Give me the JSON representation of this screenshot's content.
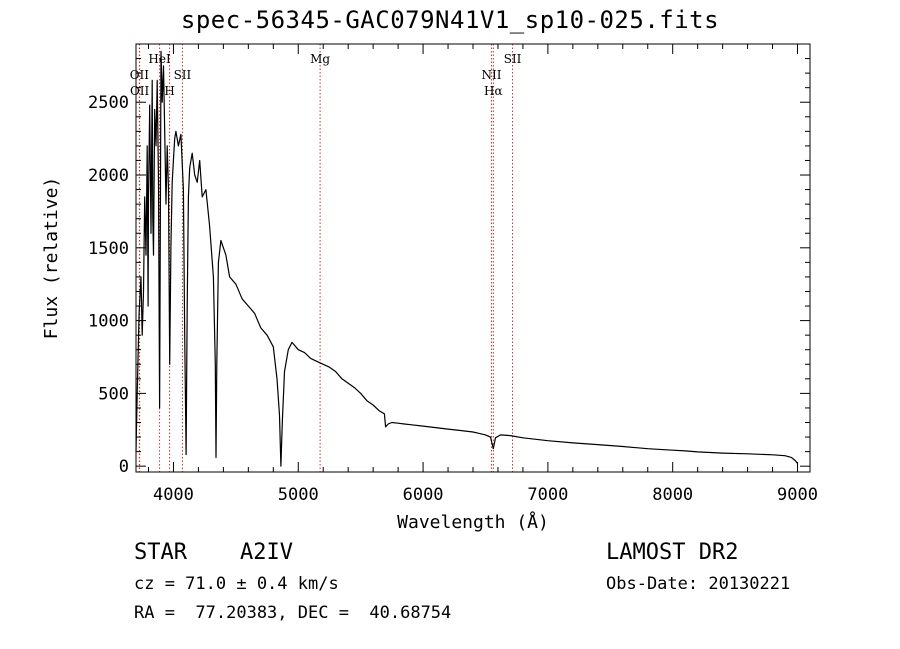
{
  "chart_data": {
    "type": "line",
    "title": "spec-56345-GAC079N41V1_sp10-025.fits",
    "xlabel": "Wavelength (Å)",
    "ylabel": "Flux (relative)",
    "xlim": [
      3700,
      9100
    ],
    "ylim": [
      -40,
      2900
    ],
    "x_ticks": [
      "4000",
      "5000",
      "6000",
      "7000",
      "8000",
      "9000"
    ],
    "x_tick_values": [
      4000,
      5000,
      6000,
      7000,
      8000,
      9000
    ],
    "y_ticks": [
      "0",
      "500",
      "1000",
      "1500",
      "2000",
      "2500"
    ],
    "y_tick_values": [
      0,
      500,
      1000,
      1500,
      2000,
      2500
    ],
    "line_color": "#000000",
    "marker_color": "#c0392b",
    "series": [
      {
        "x": [
          3700,
          3710,
          3725,
          3740,
          3750,
          3760,
          3770,
          3780,
          3790,
          3797,
          3800,
          3810,
          3820,
          3830,
          3835,
          3840,
          3850,
          3860,
          3870,
          3880,
          3889,
          3895,
          3900,
          3910,
          3920,
          3930,
          3940,
          3950,
          3960,
          3970,
          3980,
          3990,
          4000,
          4010,
          4020,
          4040,
          4060,
          4080,
          4090,
          4101,
          4110,
          4120,
          4130,
          4150,
          4170,
          4190,
          4210,
          4230,
          4260,
          4290,
          4320,
          4335,
          4341,
          4347,
          4360,
          4380,
          4400,
          4420,
          4450,
          4500,
          4550,
          4600,
          4650,
          4700,
          4750,
          4800,
          4830,
          4850,
          4861,
          4872,
          4890,
          4920,
          4950,
          5000,
          5050,
          5100,
          5150,
          5200,
          5250,
          5300,
          5350,
          5400,
          5450,
          5500,
          5550,
          5600,
          5650,
          5690,
          5700,
          5720,
          5750,
          5800,
          5850,
          5900,
          6000,
          6100,
          6200,
          6300,
          6400,
          6450,
          6500,
          6540,
          6563,
          6580,
          6620,
          6700,
          6800,
          7000,
          7200,
          7400,
          7600,
          7800,
          8000,
          8100,
          8200,
          8400,
          8600,
          8800,
          8900,
          8950,
          8980,
          9000
        ],
        "values": [
          100,
          500,
          1050,
          1300,
          900,
          1200,
          1850,
          1450,
          2200,
          1100,
          1850,
          2480,
          1600,
          2650,
          1700,
          1450,
          2450,
          2200,
          2650,
          1950,
          400,
          1600,
          2850,
          2500,
          2750,
          2300,
          1800,
          2200,
          1900,
          700,
          1500,
          1950,
          2100,
          2250,
          2300,
          2200,
          2280,
          1900,
          900,
          80,
          1100,
          1850,
          2050,
          2150,
          2000,
          1950,
          2100,
          1850,
          1900,
          1650,
          1300,
          700,
          60,
          700,
          1400,
          1550,
          1500,
          1450,
          1300,
          1250,
          1150,
          1100,
          1050,
          950,
          900,
          820,
          600,
          350,
          0,
          300,
          650,
          800,
          850,
          800,
          780,
          740,
          720,
          700,
          680,
          650,
          600,
          570,
          540,
          500,
          450,
          420,
          380,
          360,
          270,
          290,
          300,
          295,
          290,
          285,
          275,
          265,
          255,
          245,
          235,
          225,
          215,
          200,
          120,
          195,
          215,
          210,
          195,
          175,
          160,
          148,
          135,
          120,
          110,
          105,
          98,
          90,
          85,
          78,
          72,
          60,
          40,
          20
        ]
      }
    ],
    "lines": [
      {
        "label": "OII",
        "x": 3727,
        "row": 1
      },
      {
        "label": "OII",
        "x": 3729,
        "row": 2
      },
      {
        "label": "HeI",
        "x": 3889,
        "row": 0
      },
      {
        "label": "H",
        "x": 3969,
        "row": 2
      },
      {
        "label": "SII",
        "x": 4072,
        "row": 1
      },
      {
        "label": "Mg",
        "x": 5175,
        "row": 0
      },
      {
        "label": "NII",
        "x": 6548,
        "row": 1
      },
      {
        "label": "Hα",
        "x": 6563,
        "row": 2
      },
      {
        "label": "SII",
        "x": 6717,
        "row": 0
      }
    ]
  },
  "info": {
    "object_class": "STAR",
    "subclass": "A2IV",
    "survey": "LAMOST DR2",
    "cz": "cz = 71.0 ± 0.4 km/s",
    "obs_date": "Obs-Date: 20130221",
    "coords": "RA =  77.20383, DEC =  40.68754"
  }
}
